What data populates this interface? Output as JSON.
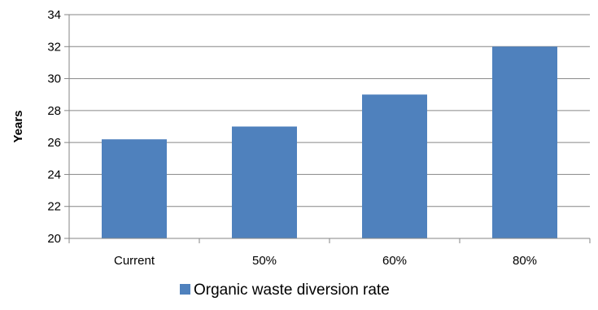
{
  "chart_data": {
    "type": "bar",
    "categories": [
      "Current",
      "50%",
      "60%",
      "80%"
    ],
    "series": [
      {
        "name": "Organic waste diversion rate",
        "values": [
          26.2,
          27,
          29,
          32
        ],
        "color": "#4f81bd"
      }
    ],
    "ylabel": "Years",
    "xlabel": "",
    "ylim": [
      20,
      34
    ],
    "yticks": [
      20,
      22,
      24,
      26,
      28,
      30,
      32,
      34
    ],
    "grid": true,
    "legend_position": "bottom"
  }
}
